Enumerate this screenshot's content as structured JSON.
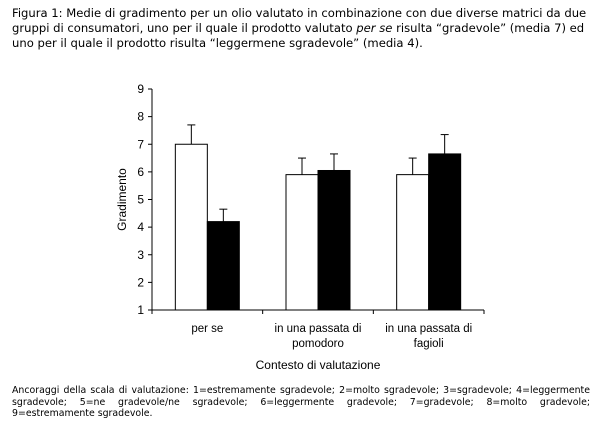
{
  "caption": {
    "part1": "Figura 1: Medie di gradimento  per un olio valutato in combinazione con due diverse matrici da due gruppi di consumatori, uno per il quale il prodotto valutato ",
    "italic": "per se",
    "part2": "  risulta “gradevole” (media 7) ed uno per il quale il prodotto risulta “leggermene sgradevole” (media 4)."
  },
  "chart_data": {
    "type": "bar",
    "categories": [
      [
        "per se"
      ],
      [
        "in una passata di",
        "pomodoro"
      ],
      [
        "in una passata di",
        "fagioli"
      ]
    ],
    "series": [
      {
        "fill": "#ffffff",
        "values": [
          7.0,
          5.9,
          5.9
        ],
        "errors": [
          0.7,
          0.6,
          0.6
        ]
      },
      {
        "fill": "#000000",
        "values": [
          4.2,
          6.05,
          6.65
        ],
        "errors": [
          0.45,
          0.6,
          0.7
        ]
      }
    ],
    "ylabel": "Gradimento",
    "xlabel": "Contesto di valutazione",
    "ylim": [
      1,
      9
    ],
    "yticks": [
      1,
      2,
      3,
      4,
      5,
      6,
      7,
      8,
      9
    ],
    "grid": false,
    "legend": "none"
  },
  "footnote": "Ancoraggi della scala di valutazione: 1=estremamente sgradevole; 2=molto sgradevole; 3=sgradevole; 4=leggermente sgradevole; 5=ne gradevole/ne sgradevole; 6=leggermente gradevole; 7=gradevole; 8=molto gradevole; 9=estremamente sgradevole."
}
